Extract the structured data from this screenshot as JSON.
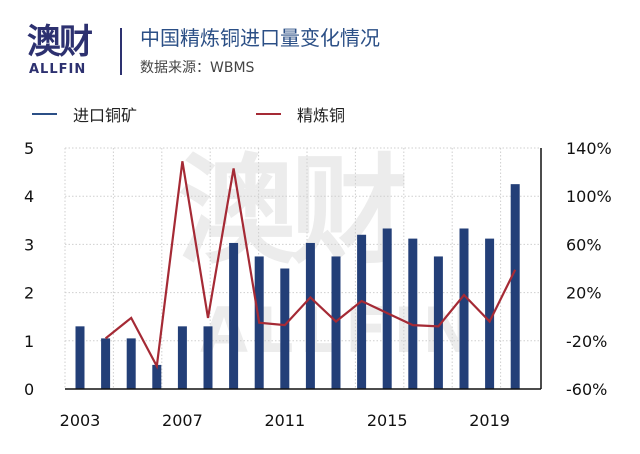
{
  "header": {
    "logo_cn": "澳财",
    "logo_en": "ALLFIN",
    "title": "中国精炼铜进口量变化情况",
    "subtitle": "数据来源：WBMS"
  },
  "legend": [
    {
      "label": "进口铜矿",
      "color": "#2b4f86"
    },
    {
      "label": "精炼铜",
      "color": "#a52a35"
    }
  ],
  "watermark": {
    "cn": "澳财",
    "en": "ALLFIN",
    "color": "#ececec"
  },
  "colors": {
    "bar": "#233f78",
    "line": "#a52a35",
    "axis": "#111111",
    "grid": "#cfcfcf"
  },
  "chart_data": {
    "type": "bar+line",
    "title": "中国精炼铜进口量变化情况",
    "source": "数据来源：WBMS",
    "x": [
      2003,
      2004,
      2005,
      2006,
      2007,
      2008,
      2009,
      2010,
      2011,
      2012,
      2013,
      2014,
      2015,
      2016,
      2017,
      2018,
      2019,
      2020
    ],
    "x_tick_labels": [
      "2003",
      "2007",
      "2011",
      "2015",
      "2019"
    ],
    "series": [
      {
        "name": "进口铜矿",
        "type": "bar",
        "axis": "left",
        "values": [
          1.3,
          1.05,
          1.05,
          0.5,
          1.3,
          1.3,
          3.03,
          2.75,
          2.5,
          3.03,
          2.75,
          3.2,
          3.33,
          3.12,
          2.75,
          3.33,
          3.12,
          4.25
        ]
      },
      {
        "name": "精炼铜",
        "type": "line",
        "axis": "right",
        "unit": "%",
        "values": [
          null,
          -18,
          -1,
          -41,
          129,
          -1,
          123,
          -5,
          -7,
          16,
          -4,
          13,
          3,
          -7,
          -8,
          18,
          -4,
          39
        ]
      }
    ],
    "left_axis": {
      "ylim": [
        0,
        5
      ],
      "ticks": [
        "0",
        "1",
        "2",
        "3",
        "4",
        "5"
      ]
    },
    "right_axis": {
      "ylim": [
        -60,
        140
      ],
      "ticks": [
        "-60%",
        "-20%",
        "20%",
        "60%",
        "100%",
        "140%"
      ]
    },
    "grid": true,
    "legend_position": "top"
  }
}
